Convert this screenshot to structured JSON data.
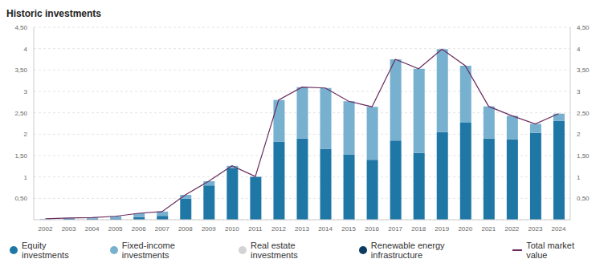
{
  "chart_data": {
    "type": "bar",
    "title": "Historic investments",
    "stacked": true,
    "grid": true,
    "legend": "bottom",
    "categories": [
      "2002",
      "2003",
      "2004",
      "2005",
      "2006",
      "2007",
      "2008",
      "2009",
      "2010",
      "2011",
      "2012",
      "2013",
      "2014",
      "2015",
      "2016",
      "2017",
      "2018",
      "2019",
      "2020",
      "2021",
      "2022",
      "2023",
      "2024"
    ],
    "ylim": [
      0,
      4.5
    ],
    "yticks": [
      {
        "value": 0.5,
        "label": "0,50"
      },
      1,
      {
        "value": 1.5,
        "label": "1,50"
      },
      2,
      {
        "value": 2.5,
        "label": "2,50"
      },
      3,
      {
        "value": 3.5,
        "label": "3,50"
      },
      4,
      {
        "value": 4.5,
        "label": "4,50"
      }
    ],
    "y2lim": [
      0,
      4.5
    ],
    "y2ticks": [
      {
        "value": 0.5,
        "label": "0,50"
      },
      1,
      {
        "value": 1.5,
        "label": "1,50"
      },
      2,
      {
        "value": 2.5,
        "label": "2,50"
      },
      3,
      {
        "value": 3.5,
        "label": "3,50"
      },
      4,
      {
        "value": 4.5,
        "label": "4,50"
      }
    ],
    "series": [
      {
        "name": "Equity investments",
        "type": "bar",
        "color": "#1f77a6",
        "values": [
          0.01,
          0.02,
          0.02,
          0.03,
          0.06,
          0.09,
          0.49,
          0.8,
          1.2,
          1.0,
          1.83,
          1.9,
          1.66,
          1.53,
          1.4,
          1.85,
          1.56,
          2.05,
          2.27,
          1.9,
          1.88,
          2.03,
          2.31
        ]
      },
      {
        "name": "Fixed-income investments",
        "type": "bar",
        "color": "#78b0d0",
        "values": [
          0.01,
          0.02,
          0.03,
          0.05,
          0.09,
          0.1,
          0.09,
          0.1,
          0.06,
          0.01,
          0.97,
          1.2,
          1.42,
          1.24,
          1.24,
          1.9,
          1.97,
          1.94,
          1.33,
          0.75,
          0.55,
          0.21,
          0.17
        ]
      },
      {
        "name": "Real estate investments",
        "type": "bar",
        "color": "#d3d3d3",
        "values": [
          0,
          0,
          0,
          0,
          0,
          0,
          0,
          0,
          0,
          0,
          0,
          0,
          0,
          0,
          0,
          0,
          0,
          0,
          0,
          0,
          0,
          0,
          0
        ]
      },
      {
        "name": "Renewable energy infrastructure",
        "type": "bar",
        "color": "#0c3c60",
        "values": [
          0,
          0,
          0,
          0,
          0,
          0,
          0,
          0,
          0,
          0,
          0,
          0,
          0,
          0,
          0,
          0,
          0,
          0,
          0,
          0,
          0,
          0,
          0
        ]
      },
      {
        "name": "Total market value",
        "type": "line",
        "color": "#6a2c5f",
        "values": [
          0.02,
          0.04,
          0.05,
          0.08,
          0.15,
          0.19,
          0.58,
          0.9,
          1.26,
          1.01,
          2.8,
          3.1,
          3.08,
          2.77,
          2.64,
          3.75,
          3.53,
          3.99,
          3.6,
          2.65,
          2.43,
          2.24,
          2.48
        ]
      }
    ]
  }
}
